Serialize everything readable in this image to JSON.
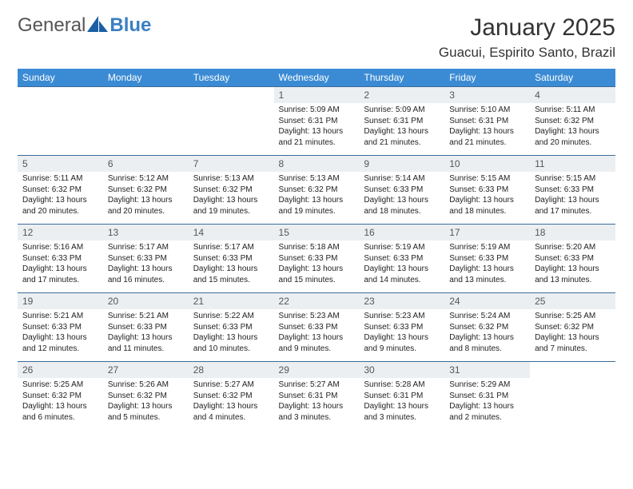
{
  "logo": {
    "text1": "General",
    "text2": "Blue"
  },
  "title": {
    "month": "January 2025",
    "location": "Guacui, Espirito Santo, Brazil"
  },
  "colors": {
    "header_bg": "#3b8bd4",
    "header_text": "#ffffff",
    "daynum_bg": "#eceff1",
    "border": "#3b6b99",
    "logo_accent": "#1b5fa6"
  },
  "weekdays": [
    "Sunday",
    "Monday",
    "Tuesday",
    "Wednesday",
    "Thursday",
    "Friday",
    "Saturday"
  ],
  "weeks": [
    [
      {
        "empty": true
      },
      {
        "empty": true
      },
      {
        "empty": true
      },
      {
        "n": "1",
        "sr": "5:09 AM",
        "ss": "6:31 PM",
        "dl": "13 hours and 21 minutes."
      },
      {
        "n": "2",
        "sr": "5:09 AM",
        "ss": "6:31 PM",
        "dl": "13 hours and 21 minutes."
      },
      {
        "n": "3",
        "sr": "5:10 AM",
        "ss": "6:31 PM",
        "dl": "13 hours and 21 minutes."
      },
      {
        "n": "4",
        "sr": "5:11 AM",
        "ss": "6:32 PM",
        "dl": "13 hours and 20 minutes."
      }
    ],
    [
      {
        "n": "5",
        "sr": "5:11 AM",
        "ss": "6:32 PM",
        "dl": "13 hours and 20 minutes."
      },
      {
        "n": "6",
        "sr": "5:12 AM",
        "ss": "6:32 PM",
        "dl": "13 hours and 20 minutes."
      },
      {
        "n": "7",
        "sr": "5:13 AM",
        "ss": "6:32 PM",
        "dl": "13 hours and 19 minutes."
      },
      {
        "n": "8",
        "sr": "5:13 AM",
        "ss": "6:32 PM",
        "dl": "13 hours and 19 minutes."
      },
      {
        "n": "9",
        "sr": "5:14 AM",
        "ss": "6:33 PM",
        "dl": "13 hours and 18 minutes."
      },
      {
        "n": "10",
        "sr": "5:15 AM",
        "ss": "6:33 PM",
        "dl": "13 hours and 18 minutes."
      },
      {
        "n": "11",
        "sr": "5:15 AM",
        "ss": "6:33 PM",
        "dl": "13 hours and 17 minutes."
      }
    ],
    [
      {
        "n": "12",
        "sr": "5:16 AM",
        "ss": "6:33 PM",
        "dl": "13 hours and 17 minutes."
      },
      {
        "n": "13",
        "sr": "5:17 AM",
        "ss": "6:33 PM",
        "dl": "13 hours and 16 minutes."
      },
      {
        "n": "14",
        "sr": "5:17 AM",
        "ss": "6:33 PM",
        "dl": "13 hours and 15 minutes."
      },
      {
        "n": "15",
        "sr": "5:18 AM",
        "ss": "6:33 PM",
        "dl": "13 hours and 15 minutes."
      },
      {
        "n": "16",
        "sr": "5:19 AM",
        "ss": "6:33 PM",
        "dl": "13 hours and 14 minutes."
      },
      {
        "n": "17",
        "sr": "5:19 AM",
        "ss": "6:33 PM",
        "dl": "13 hours and 13 minutes."
      },
      {
        "n": "18",
        "sr": "5:20 AM",
        "ss": "6:33 PM",
        "dl": "13 hours and 13 minutes."
      }
    ],
    [
      {
        "n": "19",
        "sr": "5:21 AM",
        "ss": "6:33 PM",
        "dl": "13 hours and 12 minutes."
      },
      {
        "n": "20",
        "sr": "5:21 AM",
        "ss": "6:33 PM",
        "dl": "13 hours and 11 minutes."
      },
      {
        "n": "21",
        "sr": "5:22 AM",
        "ss": "6:33 PM",
        "dl": "13 hours and 10 minutes."
      },
      {
        "n": "22",
        "sr": "5:23 AM",
        "ss": "6:33 PM",
        "dl": "13 hours and 9 minutes."
      },
      {
        "n": "23",
        "sr": "5:23 AM",
        "ss": "6:33 PM",
        "dl": "13 hours and 9 minutes."
      },
      {
        "n": "24",
        "sr": "5:24 AM",
        "ss": "6:32 PM",
        "dl": "13 hours and 8 minutes."
      },
      {
        "n": "25",
        "sr": "5:25 AM",
        "ss": "6:32 PM",
        "dl": "13 hours and 7 minutes."
      }
    ],
    [
      {
        "n": "26",
        "sr": "5:25 AM",
        "ss": "6:32 PM",
        "dl": "13 hours and 6 minutes."
      },
      {
        "n": "27",
        "sr": "5:26 AM",
        "ss": "6:32 PM",
        "dl": "13 hours and 5 minutes."
      },
      {
        "n": "28",
        "sr": "5:27 AM",
        "ss": "6:32 PM",
        "dl": "13 hours and 4 minutes."
      },
      {
        "n": "29",
        "sr": "5:27 AM",
        "ss": "6:31 PM",
        "dl": "13 hours and 3 minutes."
      },
      {
        "n": "30",
        "sr": "5:28 AM",
        "ss": "6:31 PM",
        "dl": "13 hours and 3 minutes."
      },
      {
        "n": "31",
        "sr": "5:29 AM",
        "ss": "6:31 PM",
        "dl": "13 hours and 2 minutes."
      },
      {
        "empty": true
      }
    ]
  ],
  "labels": {
    "sunrise": "Sunrise: ",
    "sunset": "Sunset: ",
    "daylight": "Daylight: "
  }
}
